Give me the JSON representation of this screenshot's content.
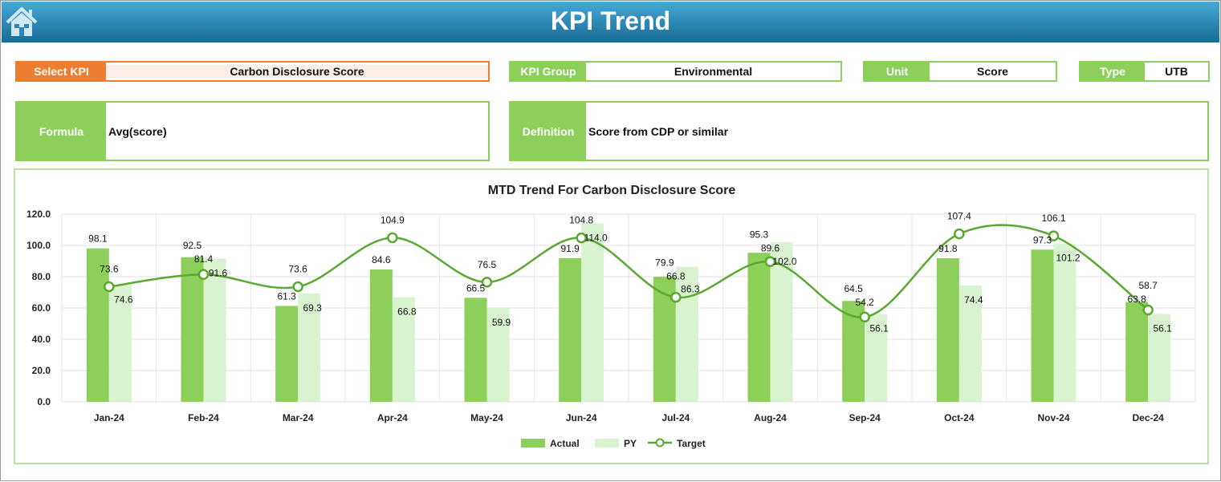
{
  "header": {
    "title": "KPI Trend",
    "home_icon": "home-icon"
  },
  "select_kpi": {
    "label": "Select KPI",
    "value": "Carbon Disclosure Score"
  },
  "kpi_group": {
    "label": "KPI Group",
    "value": "Environmental"
  },
  "unit": {
    "label": "Unit",
    "value": "Score"
  },
  "type": {
    "label": "Type",
    "value": "UTB"
  },
  "formula": {
    "label": "Formula",
    "value": "Avg(score)"
  },
  "definition": {
    "label": "Definition",
    "value": "Score from CDP or similar"
  },
  "colors": {
    "header": "#1a6a95",
    "accent_orange": "#ed7d31",
    "green": "#8ccf5a",
    "py": "#d9f2cf",
    "target": "#5aa832"
  },
  "chart_data": {
    "type": "bar",
    "title": "MTD Trend For Carbon Disclosure Score",
    "categories": [
      "Jan-24",
      "Feb-24",
      "Mar-24",
      "Apr-24",
      "May-24",
      "Jun-24",
      "Jul-24",
      "Aug-24",
      "Sep-24",
      "Oct-24",
      "Nov-24",
      "Dec-24"
    ],
    "ylim": [
      0,
      120
    ],
    "yticks": [
      "0.0",
      "20.0",
      "40.0",
      "60.0",
      "80.0",
      "100.0",
      "120.0"
    ],
    "grid": true,
    "legend": "bottom",
    "series": [
      {
        "name": "Actual",
        "type": "bar",
        "values": [
          98.1,
          92.5,
          61.3,
          84.6,
          66.5,
          91.9,
          79.9,
          95.3,
          64.5,
          91.8,
          97.3,
          63.8
        ]
      },
      {
        "name": "PY",
        "type": "bar",
        "values": [
          74.6,
          91.6,
          69.3,
          66.8,
          59.9,
          114.0,
          86.3,
          102.0,
          56.1,
          74.4,
          101.2,
          56.1
        ]
      },
      {
        "name": "Target",
        "type": "line",
        "values": [
          73.6,
          81.4,
          73.6,
          104.9,
          76.5,
          104.8,
          66.8,
          89.6,
          54.2,
          107.4,
          106.1,
          58.7
        ]
      }
    ]
  }
}
